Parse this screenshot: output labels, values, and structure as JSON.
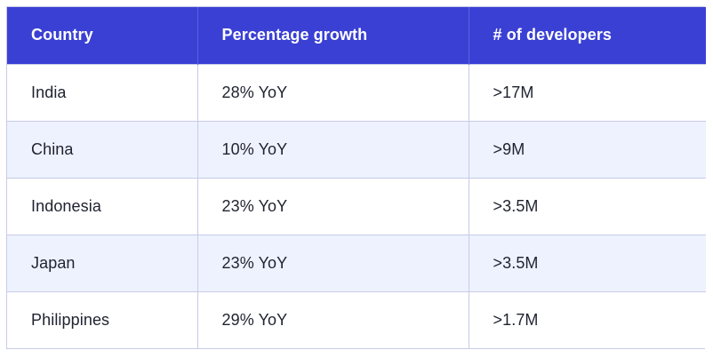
{
  "table": {
    "headers": [
      "Country",
      "Percentage growth",
      "# of developers"
    ],
    "rows": [
      [
        "India",
        "28% YoY",
        ">17M"
      ],
      [
        "China",
        "10% YoY",
        ">9M"
      ],
      [
        "Indonesia",
        "23% YoY",
        ">3.5M"
      ],
      [
        "Japan",
        "23% YoY",
        ">3.5M"
      ],
      [
        "Philippines",
        "29% YoY",
        ">1.7M"
      ]
    ]
  },
  "colors": {
    "header_bg": "#3a40d4",
    "header_text": "#ffffff",
    "row_alt_bg": "#eef2fe",
    "border": "#c7cbe8"
  }
}
